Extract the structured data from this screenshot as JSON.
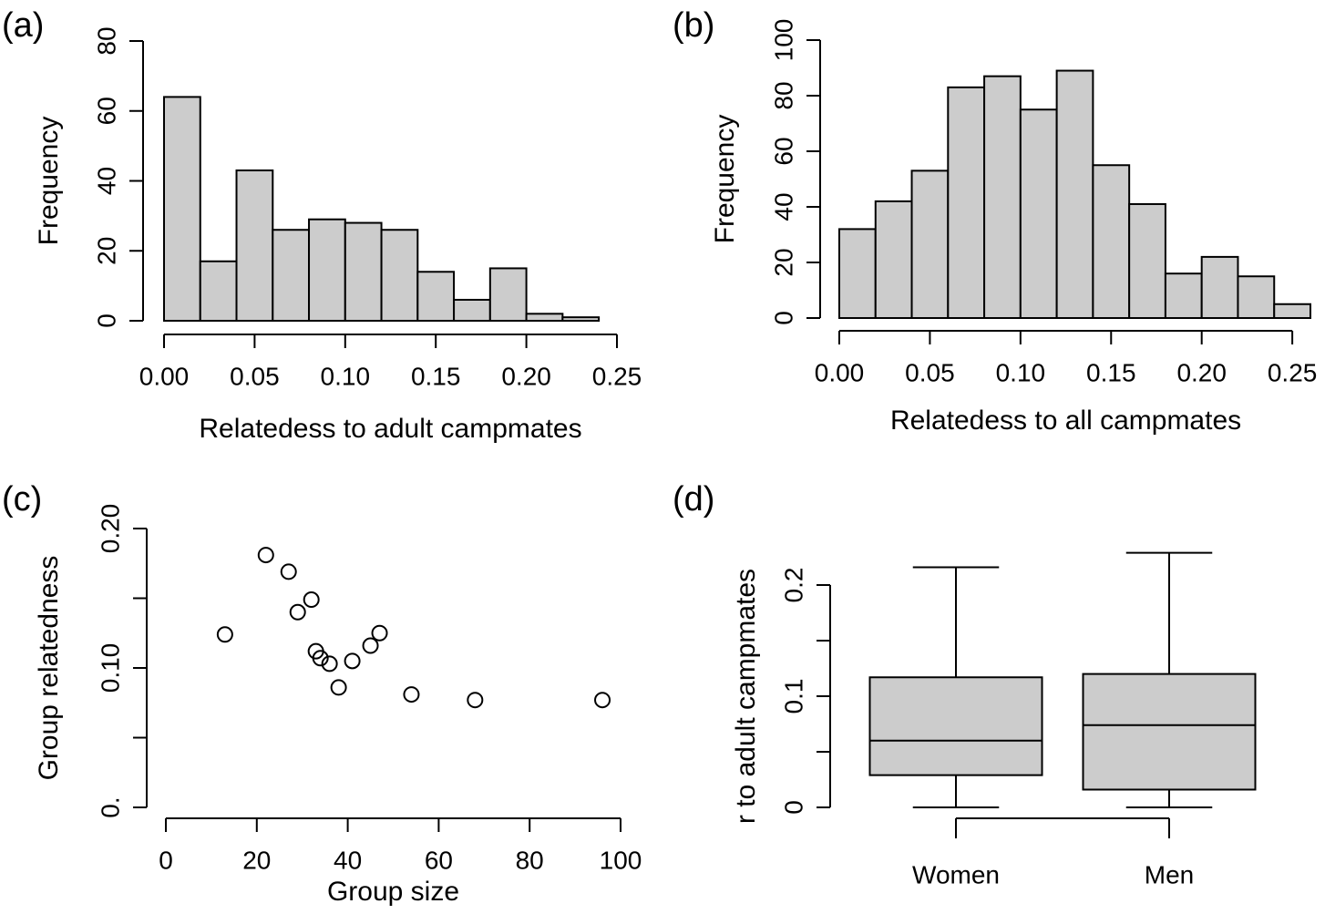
{
  "chart_data": [
    {
      "type": "histogram",
      "panel_label": "(a)",
      "xlabel": "Relatedess to adult campmates",
      "ylabel": "Frequency",
      "bins": [
        0,
        0.02,
        0.04,
        0.06,
        0.08,
        0.1,
        0.12,
        0.14,
        0.16,
        0.18,
        0.2,
        0.22,
        0.24
      ],
      "values": [
        64,
        17,
        43,
        26,
        29,
        28,
        26,
        14,
        6,
        15,
        2,
        1
      ],
      "color": "#cccccc",
      "xlim": [
        0,
        0.25
      ],
      "xticks": [
        {
          "value": 0,
          "label": "0.00"
        },
        0.05,
        {
          "value": 0.1,
          "label": "0.10"
        },
        0.15,
        {
          "value": 0.2,
          "label": "0.20"
        },
        0.25
      ],
      "ylim": [
        0,
        80
      ],
      "yticks": [
        0,
        20,
        40,
        60,
        80
      ]
    },
    {
      "type": "histogram",
      "panel_label": "(b)",
      "xlabel": "Relatedess to all campmates",
      "ylabel": "Frequency",
      "bins": [
        0,
        0.02,
        0.04,
        0.06,
        0.08,
        0.1,
        0.12,
        0.14,
        0.16,
        0.18,
        0.2,
        0.22,
        0.24,
        0.26
      ],
      "values": [
        32,
        42,
        53,
        83,
        87,
        75,
        89,
        55,
        41,
        16,
        22,
        15,
        5
      ],
      "color": "#cccccc",
      "xlim": [
        0,
        0.26
      ],
      "xticks": [
        {
          "value": 0,
          "label": "0.00"
        },
        0.05,
        {
          "value": 0.1,
          "label": "0.10"
        },
        0.15,
        {
          "value": 0.2,
          "label": "0.20"
        },
        0.25
      ],
      "ylim": [
        0,
        100
      ],
      "yticks": [
        0,
        20,
        40,
        60,
        80,
        100
      ]
    },
    {
      "type": "scatter",
      "panel_label": "(c)",
      "xlabel": "Group size",
      "ylabel": "Group relatedness",
      "x": [
        13,
        22,
        27,
        29,
        32,
        33,
        34,
        36,
        38,
        41,
        45,
        47,
        54,
        68,
        96
      ],
      "values": [
        0.124,
        0.181,
        0.169,
        0.14,
        0.149,
        0.112,
        0.107,
        0.103,
        0.086,
        0.105,
        0.116,
        0.125,
        0.081,
        0.077,
        0.077
      ],
      "xlim": [
        0,
        100
      ],
      "xticks": [
        0,
        20,
        40,
        60,
        80,
        100
      ],
      "ylim": [
        0,
        0.2
      ],
      "yticks": [
        {
          "value": 0,
          "label": "0."
        },
        {
          "value": 0.1,
          "label": "0.10"
        },
        {
          "value": 0.2,
          "label": "0.20"
        }
      ],
      "yminor_ticks": [
        0.05,
        0.15
      ]
    },
    {
      "type": "box",
      "panel_label": "(d)",
      "ylabel": "r to adult campmates",
      "categories": [
        "Women",
        "Men"
      ],
      "color": "#cccccc",
      "boxes": [
        {
          "min": 0,
          "q1": 0.029,
          "median": 0.06,
          "q3": 0.117,
          "max": 0.216
        },
        {
          "min": 0,
          "q1": 0.016,
          "median": 0.074,
          "q3": 0.12,
          "max": 0.229
        }
      ],
      "ylim": [
        0,
        0.2
      ],
      "yticks": [
        0,
        0.1,
        0.2
      ],
      "yminor_ticks": [
        0.05,
        0.15
      ]
    }
  ]
}
